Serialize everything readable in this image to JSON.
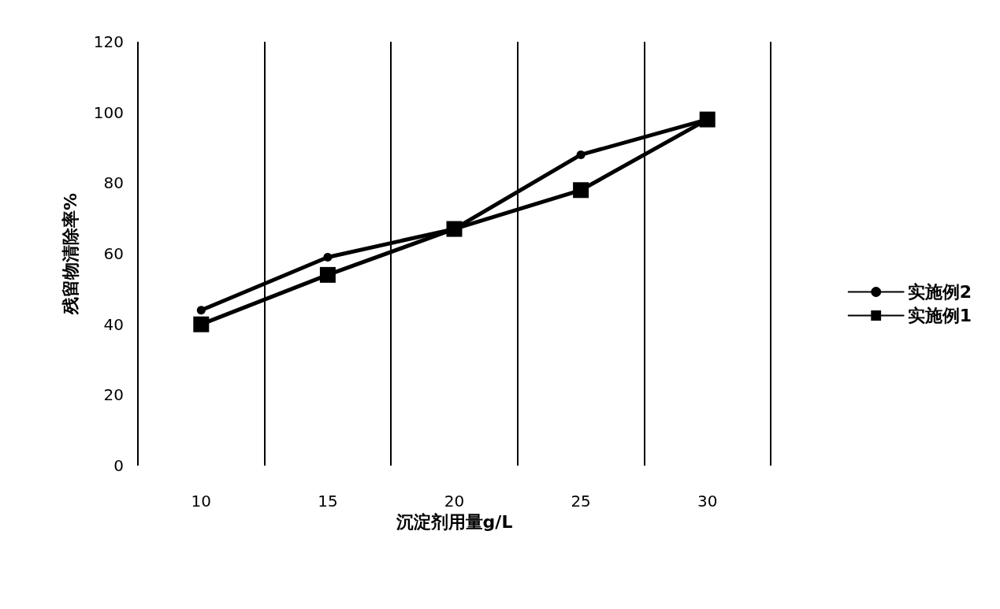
{
  "chart_data": {
    "type": "line",
    "xlabel": "沉淀剂用量g/L",
    "ylabel": "残留物清除率%",
    "categories": [
      "10",
      "15",
      "20",
      "25",
      "30"
    ],
    "series": [
      {
        "name": "实施例2",
        "color": "#000000",
        "marker": "circle",
        "values": [
          44,
          59,
          67,
          88,
          98
        ]
      },
      {
        "name": "实施例1",
        "color": "#000000",
        "marker": "square",
        "values": [
          40,
          54,
          67,
          78,
          98
        ]
      }
    ],
    "ylim": [
      0,
      120
    ],
    "yticks": [
      0,
      20,
      40,
      60,
      80,
      100,
      120
    ],
    "grid": "x",
    "legend": "right"
  }
}
